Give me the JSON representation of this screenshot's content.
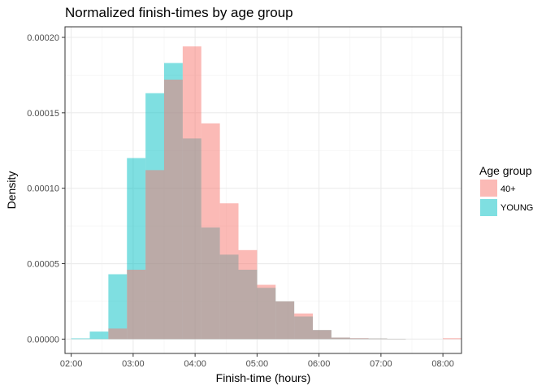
{
  "chart_data": {
    "type": "histogram",
    "title": "Normalized finish-times by age group",
    "xlabel": "Finish-time (hours)",
    "ylabel": "Density",
    "x_unit": "hours",
    "xlim": [
      1.9,
      8.3
    ],
    "ylim": [
      -9.5e-06,
      0.000207
    ],
    "x_ticks": [
      {
        "value": 2,
        "label": "02:00"
      },
      {
        "value": 3,
        "label": "03:00"
      },
      {
        "value": 4,
        "label": "04:00"
      },
      {
        "value": 5,
        "label": "05:00"
      },
      {
        "value": 6,
        "label": "06:00"
      },
      {
        "value": 7,
        "label": "07:00"
      },
      {
        "value": 8,
        "label": "08:00"
      }
    ],
    "y_ticks": [
      {
        "value": 0,
        "label": "0.00000"
      },
      {
        "value": 5e-05,
        "label": "0.00005"
      },
      {
        "value": 0.0001,
        "label": "0.00010"
      },
      {
        "value": 0.00015,
        "label": "0.00015"
      },
      {
        "value": 0.0002,
        "label": "0.00020"
      }
    ],
    "grid": true,
    "legend": {
      "title": "Age group",
      "position": "right"
    },
    "bin_width_hours": 0.3,
    "bin_starts": [
      2.0,
      2.3,
      2.6,
      2.9,
      3.2,
      3.5,
      3.8,
      4.1,
      4.4,
      4.7,
      5.0,
      5.3,
      5.6,
      5.9,
      6.2,
      6.5,
      6.8,
      7.1,
      7.4,
      7.7,
      8.0
    ],
    "series": [
      {
        "name": "40+",
        "color": "#F8766D",
        "values": [
          0,
          0,
          7e-06,
          4.6e-05,
          0.000112,
          0.000172,
          0.000194,
          0.000143,
          9e-05,
          5.9e-05,
          3.6e-05,
          2.5e-05,
          1.7e-05,
          6e-06,
          1e-06,
          6e-07,
          4e-07,
          2e-07,
          0,
          0,
          6e-07
        ]
      },
      {
        "name": "YOUNG",
        "color": "#00BFC4",
        "values": [
          5e-07,
          5e-06,
          4.3e-05,
          0.00012,
          0.000163,
          0.000183,
          0.000133,
          7.4e-05,
          5.6e-05,
          4.6e-05,
          3.4e-05,
          2.5e-05,
          1.5e-05,
          6e-06,
          1e-06,
          5e-07,
          4e-07,
          2e-07,
          0,
          0,
          0
        ]
      }
    ]
  }
}
